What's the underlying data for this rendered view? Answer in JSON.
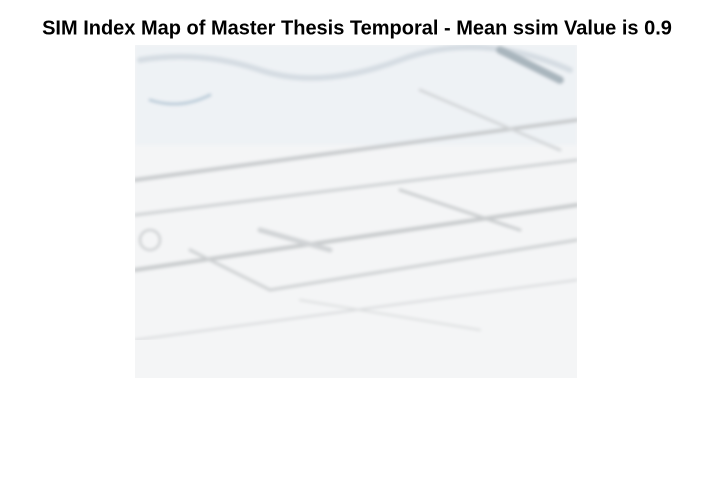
{
  "figure": {
    "title": "SIM Index Map of Master Thesis Temporal - Mean ssim Value is 0.9"
  }
}
